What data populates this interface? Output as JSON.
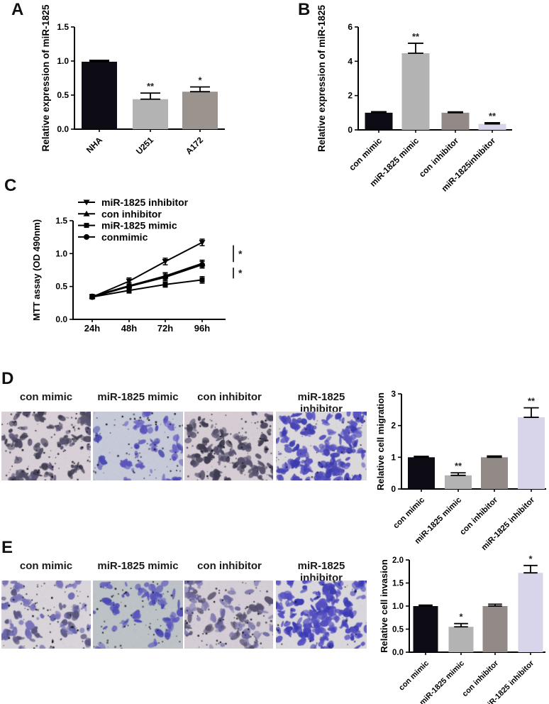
{
  "panels": {
    "a": {
      "letter": "A"
    },
    "b": {
      "letter": "B"
    },
    "c": {
      "letter": "C"
    },
    "d": {
      "letter": "D"
    },
    "e": {
      "letter": "E"
    }
  },
  "colors": {
    "bar_black": "#0d0c15",
    "bar_light_gray": "#b3b3b3",
    "bar_taupe": "#918a86",
    "bar_lavender": "#d8d5ea",
    "axis": "#000000"
  },
  "chart_data": [
    {
      "id": "A",
      "type": "bar",
      "ylabel": "Relative expression of miR-1825",
      "categories": [
        "NHA",
        "U251",
        "A172"
      ],
      "values": [
        0.99,
        0.44,
        0.55
      ],
      "errors": [
        0.02,
        0.09,
        0.07
      ],
      "significance": [
        "",
        "**",
        "*"
      ],
      "bar_colors": [
        "#0d0c15",
        "#b3b3b3",
        "#9a938e"
      ],
      "ylim": [
        0,
        1.5
      ],
      "yticks": [
        "0.0",
        "0.5",
        "1.0",
        "1.5"
      ],
      "grid": false
    },
    {
      "id": "B",
      "type": "bar",
      "ylabel": "Relative expression of miR-1825",
      "categories": [
        "con mimic",
        "miR-1825 mimic",
        "con inhibitor",
        "miR-1825inhibitor"
      ],
      "values": [
        1.0,
        4.47,
        1.0,
        0.35
      ],
      "errors": [
        0.06,
        0.58,
        0.05,
        0.07
      ],
      "significance": [
        "",
        "**",
        "",
        "**"
      ],
      "bar_colors": [
        "#0d0c15",
        "#b3b3b3",
        "#918a86",
        "#d8d5ea"
      ],
      "ylim": [
        0,
        6
      ],
      "yticks": [
        "0",
        "2",
        "4",
        "6"
      ],
      "grid": false
    },
    {
      "id": "C",
      "type": "line",
      "ylabel": "MTT assay (OD 490nm)",
      "x": [
        "24h",
        "48h",
        "72h",
        "96h"
      ],
      "ylim": [
        0,
        1.5
      ],
      "yticks": [
        "0.0",
        "0.5",
        "1.0",
        "1.5"
      ],
      "legend_position": "top-left",
      "series": [
        {
          "name": "miR-1825 inhibitor",
          "marker": "tri-down",
          "values": [
            0.34,
            0.58,
            0.88,
            1.17
          ],
          "errors": [
            0.03,
            0.05,
            0.05,
            0.05
          ]
        },
        {
          "name": "con inhibitor",
          "marker": "tri-up",
          "values": [
            0.35,
            0.51,
            0.66,
            0.85
          ],
          "errors": [
            0.03,
            0.05,
            0.05,
            0.05
          ]
        },
        {
          "name": "miR-1825 mimic",
          "marker": "square",
          "values": [
            0.34,
            0.44,
            0.53,
            0.6
          ],
          "errors": [
            0.03,
            0.04,
            0.04,
            0.05
          ]
        },
        {
          "name": "conmimic",
          "marker": "circle",
          "values": [
            0.34,
            0.5,
            0.64,
            0.83
          ],
          "errors": [
            0.03,
            0.04,
            0.05,
            0.05
          ]
        }
      ],
      "significance_brackets": [
        {
          "between": [
            "miR-1825 inhibitor",
            "con inhibitor"
          ],
          "label": "*"
        },
        {
          "between": [
            "conmimic",
            "miR-1825 mimic"
          ],
          "label": "*"
        }
      ],
      "grid": false
    },
    {
      "id": "D",
      "type": "bar",
      "ylabel": "Relative cell migration",
      "categories": [
        "con mimic",
        "miR-1825 mimic",
        "con inhibitor",
        "miR-1825 inhibitor"
      ],
      "values": [
        1.0,
        0.43,
        1.0,
        2.26
      ],
      "errors": [
        0.03,
        0.08,
        0.04,
        0.3
      ],
      "significance": [
        "",
        "**",
        "",
        "**"
      ],
      "bar_colors": [
        "#0d0c15",
        "#b3b3b3",
        "#918a86",
        "#d8d5ea"
      ],
      "ylim": [
        0,
        3
      ],
      "yticks": [
        "0",
        "1",
        "2",
        "3"
      ],
      "grid": false
    },
    {
      "id": "E",
      "type": "bar",
      "ylabel": "Relative cell invasion",
      "categories": [
        "con mimic",
        "miR-1825 mimic",
        "con inhibitor",
        "miR-1825 inhibitor"
      ],
      "values": [
        1.0,
        0.55,
        1.0,
        1.72
      ],
      "errors": [
        0.02,
        0.07,
        0.04,
        0.16
      ],
      "significance": [
        "",
        "*",
        "",
        "*"
      ],
      "bar_colors": [
        "#0d0c15",
        "#b3b3b3",
        "#918a86",
        "#d8d5ea"
      ],
      "ylim": [
        0,
        2
      ],
      "yticks": [
        "0.0",
        "0.5",
        "1.0",
        "1.5",
        "2.0"
      ],
      "grid": false
    }
  ],
  "micrographs": {
    "D": [
      {
        "label": "con mimic",
        "background": "#d8d0d6",
        "texture": "#b9aeba",
        "cell_colors": [
          "#4e4a60",
          "#5c5574",
          "#423f52"
        ],
        "cell_count": 80,
        "speck_count": 90,
        "cell_size": 5,
        "seed": 11
      },
      {
        "label": "miR-1825 mimic",
        "background": "#c6c9d8",
        "texture": "#aab0c4",
        "cell_colors": [
          "#4a4ab0",
          "#5b55bb",
          "#6c66c4"
        ],
        "cell_count": 40,
        "speck_count": 80,
        "cell_size": 6,
        "seed": 22
      },
      {
        "label": "con inhibitor",
        "background": "#d6cdd4",
        "texture": "#b6aab4",
        "cell_colors": [
          "#4c4860",
          "#59536f",
          "#3f3c50"
        ],
        "cell_count": 85,
        "speck_count": 80,
        "cell_size": 5,
        "seed": 33
      },
      {
        "label": "miR-1825 inhibitor",
        "background": "#dbd8dc",
        "texture": "#bdb8c0",
        "cell_colors": [
          "#3c3cae",
          "#4a45b4",
          "#5a55c0"
        ],
        "cell_count": 135,
        "speck_count": 40,
        "cell_size": 5,
        "seed": 44
      }
    ],
    "E": [
      {
        "label": "con mimic",
        "background": "#d9d3da",
        "texture": "#bbb2be",
        "cell_colors": [
          "#6a67ae",
          "#7a74b8",
          "#5a567e"
        ],
        "cell_count": 65,
        "speck_count": 80,
        "cell_size": 5,
        "seed": 55
      },
      {
        "label": "miR-1825 mimic",
        "background": "#bcc2c6",
        "texture": "#a2aab0",
        "cell_colors": [
          "#4a4ab2",
          "#5a55bb",
          "#6a66c0"
        ],
        "cell_count": 45,
        "speck_count": 70,
        "cell_size": 6,
        "seed": 66
      },
      {
        "label": "con inhibitor",
        "background": "#d4cdd5",
        "texture": "#b4aab6",
        "cell_colors": [
          "#8580b0",
          "#59536f",
          "#6b66a0"
        ],
        "cell_count": 75,
        "speck_count": 70,
        "cell_size": 6,
        "seed": 77
      },
      {
        "label": "miR-1825 inhibitor",
        "background": "#d9d7db",
        "texture": "#bcb8c2",
        "cell_colors": [
          "#3c3cb2",
          "#4a45bb",
          "#5550c0"
        ],
        "cell_count": 140,
        "speck_count": 30,
        "cell_size": 5,
        "seed": 88
      }
    ]
  }
}
